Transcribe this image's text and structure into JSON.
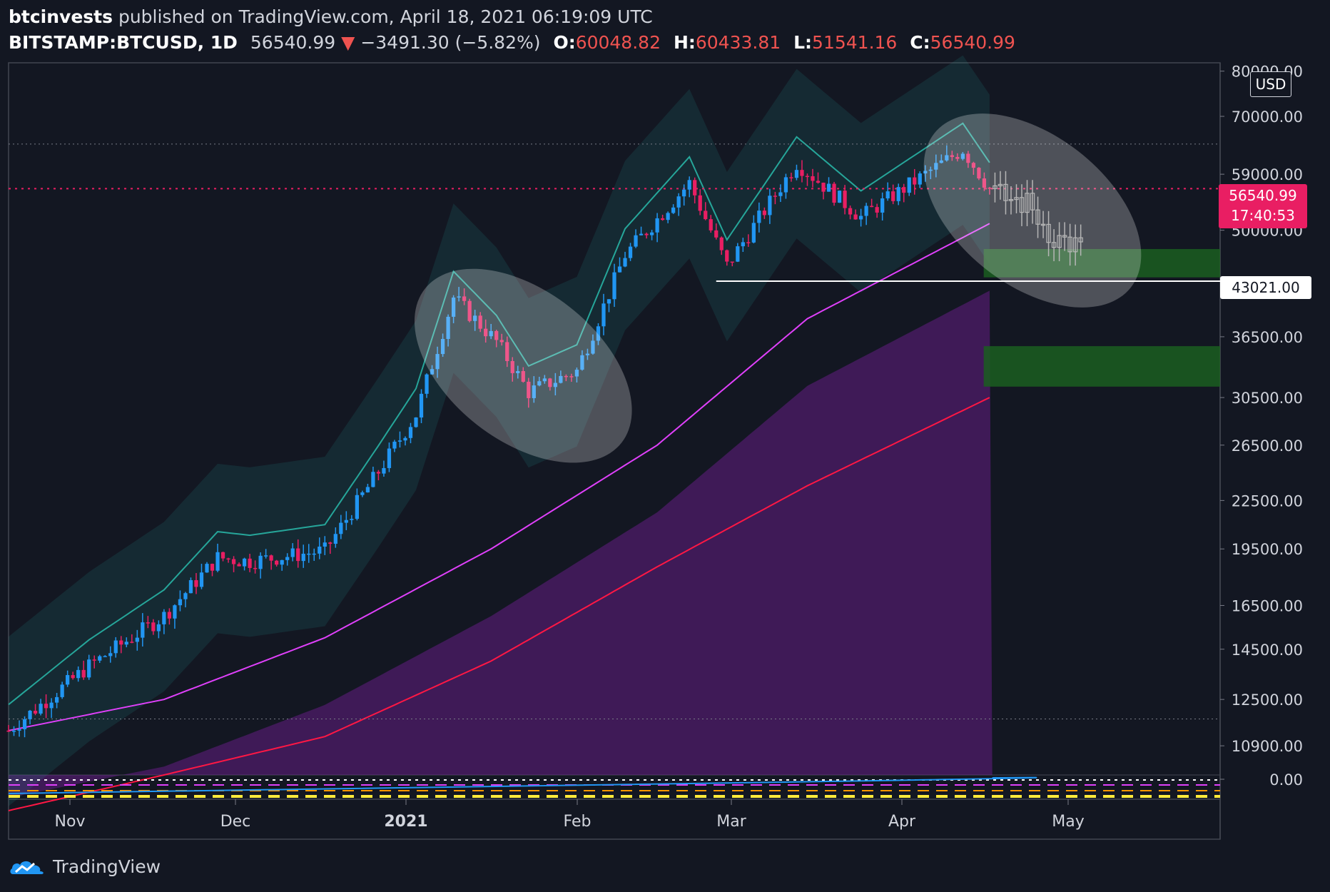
{
  "header": {
    "author": "btcinvests",
    "published": "published on TradingView.com, April 18, 2021 06:19:09 UTC",
    "symbol": "BITSTAMP:BTCUSD, 1D",
    "last": "56540.99",
    "change_arrow": "▼",
    "change": "−3491.30 (−5.82%)",
    "o_label": "O:",
    "o": "60048.82",
    "h_label": "H:",
    "h": "60433.81",
    "l_label": "L:",
    "l": "51541.16",
    "c_label": "C:",
    "c": "56540.99"
  },
  "price_axis": {
    "currency": "USD",
    "ticks": [
      "80000.00",
      "70000.00",
      "59000.00",
      "50000.00",
      "43021.00",
      "36500.00",
      "30500.00",
      "26500.00",
      "22500.00",
      "19500.00",
      "16500.00",
      "14500.00",
      "12500.00",
      "10900.00",
      "0.00"
    ],
    "last_price": "56540.99",
    "countdown": "17:40:53",
    "level_label": "43021.00"
  },
  "time_axis": {
    "labels": [
      "Nov",
      "Dec",
      "2021",
      "Feb",
      "Mar",
      "Apr",
      "May"
    ]
  },
  "footer": {
    "brand": "TradingView"
  },
  "colors": {
    "background": "#131722",
    "up": "#2196f3",
    "down": "#e91e63",
    "ma_magenta": "#e040fb",
    "ma_red": "#ff1744",
    "band": "#26a69a",
    "green_zone": "#1b5e20",
    "purple_fill": "#7b1fa2"
  },
  "chart_data": {
    "type": "candlestick",
    "symbol": "BITSTAMP:BTCUSD",
    "interval": "1D",
    "log_scale": true,
    "y_range": [
      10000,
      82000
    ],
    "x_range": [
      "2020-10-17",
      "2021-05-31"
    ],
    "price_path": [
      {
        "date": "2020-10-17",
        "close": 11400
      },
      {
        "date": "2020-11-01",
        "close": 13800
      },
      {
        "date": "2020-11-15",
        "close": 16000
      },
      {
        "date": "2020-11-25",
        "close": 19000
      },
      {
        "date": "2020-12-01",
        "close": 18800
      },
      {
        "date": "2020-12-15",
        "close": 19400
      },
      {
        "date": "2020-12-25",
        "close": 24500
      },
      {
        "date": "2021-01-01",
        "close": 29000
      },
      {
        "date": "2021-01-08",
        "close": 41000
      },
      {
        "date": "2021-01-16",
        "close": 36000
      },
      {
        "date": "2021-01-22",
        "close": 31000
      },
      {
        "date": "2021-01-31",
        "close": 33000
      },
      {
        "date": "2021-02-09",
        "close": 46500
      },
      {
        "date": "2021-02-21",
        "close": 57500
      },
      {
        "date": "2021-02-28",
        "close": 45000
      },
      {
        "date": "2021-03-13",
        "close": 61000
      },
      {
        "date": "2021-03-25",
        "close": 52000
      },
      {
        "date": "2021-04-13",
        "close": 63500
      },
      {
        "date": "2021-04-18",
        "close": 56540.99
      }
    ],
    "projection": [
      {
        "date": "2021-04-19",
        "close": 55500
      },
      {
        "date": "2021-04-25",
        "close": 54000
      },
      {
        "date": "2021-04-30",
        "close": 49000
      },
      {
        "date": "2021-05-05",
        "close": 47500
      }
    ],
    "levels": [
      {
        "price": 56540.99,
        "label": "56540.99"
      },
      {
        "price": 43021.0,
        "label": "43021.00"
      },
      {
        "price": 64500
      },
      {
        "price": 11800
      }
    ],
    "zones": [
      {
        "from": 43500,
        "to": 47300
      },
      {
        "from": 31500,
        "to": 35500
      }
    ],
    "moving_averages": [
      {
        "points": [
          [
            "2020-10-17",
            11400
          ],
          [
            "2020-11-15",
            12500
          ],
          [
            "2020-12-15",
            15000
          ],
          [
            "2021-01-15",
            19500
          ],
          [
            "2021-02-15",
            26500
          ],
          [
            "2021-03-15",
            38500
          ],
          [
            "2021-04-18",
            51000
          ]
        ]
      },
      {
        "points": [
          [
            "2020-10-17",
            9000
          ],
          [
            "2020-11-15",
            10000
          ],
          [
            "2020-12-15",
            11200
          ],
          [
            "2021-01-15",
            14000
          ],
          [
            "2021-02-15",
            18500
          ],
          [
            "2021-03-15",
            23500
          ],
          [
            "2021-04-18",
            30500
          ]
        ]
      }
    ]
  }
}
